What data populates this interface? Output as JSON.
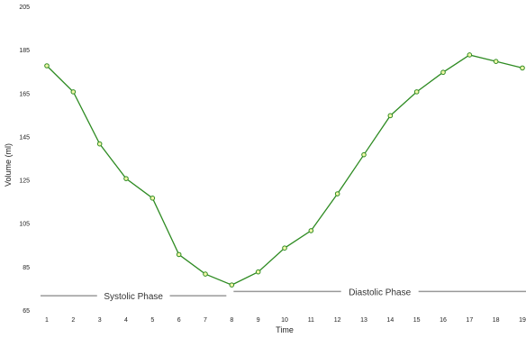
{
  "chart_data": {
    "type": "line",
    "title": "",
    "xlabel": "Time",
    "ylabel": "Volume (ml)",
    "x": [
      1,
      2,
      3,
      4,
      5,
      6,
      7,
      8,
      9,
      10,
      11,
      12,
      13,
      14,
      15,
      16,
      17,
      18,
      19
    ],
    "x_tick_labels": [
      "1",
      "2",
      "3",
      "4",
      "5",
      "6",
      "7",
      "8",
      "9",
      "10",
      "11",
      "12",
      "13",
      "14",
      "15",
      "16",
      "17",
      "18",
      "19"
    ],
    "series": [
      {
        "values": [
          178,
          166,
          142,
          126,
          117,
          91,
          82,
          77,
          83,
          94,
          102,
          119,
          137,
          155,
          166,
          175,
          183,
          180,
          177
        ]
      }
    ],
    "ylim": [
      65,
      205
    ],
    "y_ticks": [
      65,
      85,
      105,
      125,
      145,
      165,
      185,
      205
    ],
    "grid": false,
    "line_color": "#2e8b22",
    "marker_fill": "#f2f7a8",
    "annotations": [
      {
        "label": "Systolic Phase",
        "start": 1,
        "end": 8,
        "level": 72
      },
      {
        "label": "Diastolic Phase",
        "start": 8,
        "end": 19,
        "level": 74
      }
    ],
    "annotation_line_color": "#999999"
  }
}
